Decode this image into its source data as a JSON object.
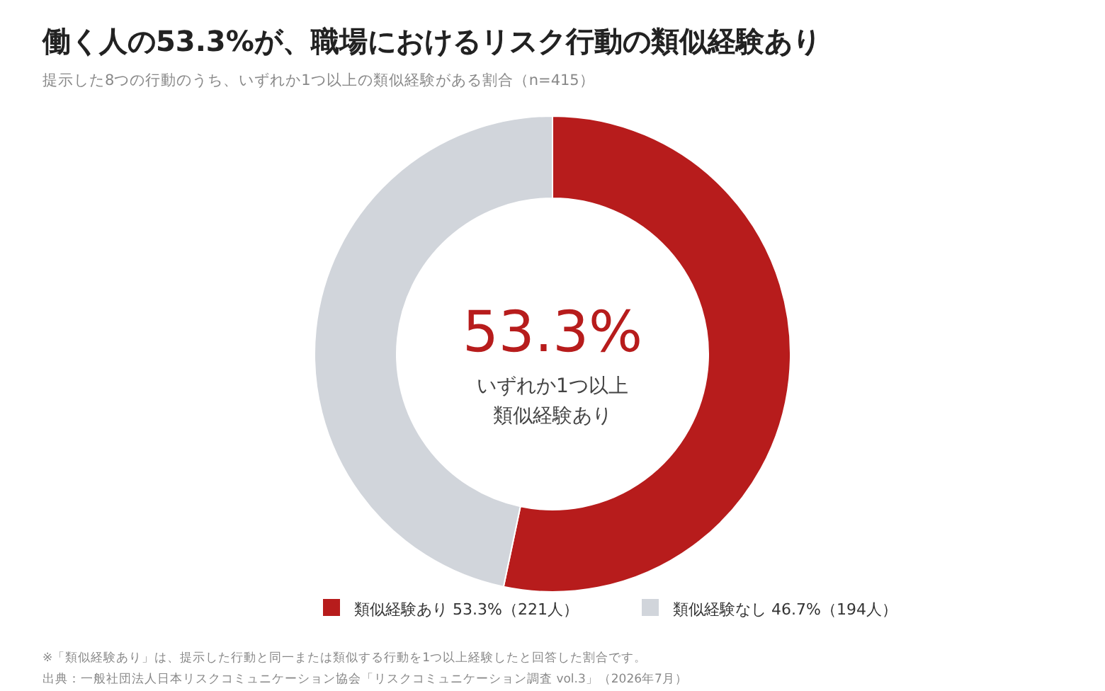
{
  "chart_data": {
    "type": "donut",
    "title": "働く人の53.3%が、職場におけるリスク行動の類似経験あり",
    "subtitle": "提示した8つの行動のうち、いずれか1つ以上の類似経験がある割合（n=415）",
    "categories": [
      "類似経験あり 53.3%（221人）",
      "類似経験なし 46.7%（194人）"
    ],
    "values": [
      53.3,
      46.7
    ],
    "colors": [
      "#b71c1c",
      "#d1d5db"
    ],
    "legend": "bottom",
    "annotations": [
      "53.3%",
      "いずれか1つ以上",
      "類似経験あり",
      "※「類似経験あり」は、提示した行動と同一または類似する行動を1つ以上経験したと回答した割合です。",
      "出典：一般社団法人日本リスクコミュニケーション協会「リスクコミュニケーション調査 vol.3」（2026年7月）"
    ]
  }
}
